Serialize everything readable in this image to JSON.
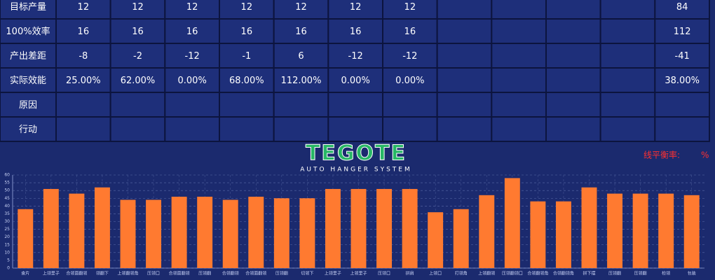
{
  "table": {
    "rows": [
      [
        "目标产量",
        "12",
        "12",
        "12",
        "12",
        "12",
        "12",
        "12",
        null,
        null,
        null,
        null,
        "84"
      ],
      [
        "100%效率",
        "16",
        "16",
        "16",
        "16",
        "16",
        "16",
        "16",
        null,
        null,
        null,
        null,
        "112"
      ],
      [
        "产出差距",
        "-8",
        "-2",
        "-12",
        "-1",
        "6",
        "-12",
        "-12",
        null,
        null,
        null,
        null,
        "-41"
      ],
      [
        "实际效能",
        "25.00%",
        "62.00%",
        "0.00%",
        "68.00%",
        "112.00%",
        "0.00%",
        "0.00%",
        null,
        null,
        null,
        null,
        "38.00%"
      ],
      [
        "原因",
        null,
        null,
        null,
        null,
        null,
        null,
        null,
        null,
        null,
        null,
        null,
        null
      ],
      [
        "行动",
        null,
        null,
        null,
        null,
        null,
        null,
        null,
        null,
        null,
        null,
        null,
        null
      ]
    ]
  },
  "logo": {
    "title": "TEGOTE",
    "subtitle": "AUTO HANGER SYSTEM"
  },
  "balance": {
    "label": "线平衡率:",
    "unit": "%"
  },
  "chart_data": {
    "type": "bar",
    "color": "#ff7a30",
    "grid": true,
    "categories": [
      "查片",
      "上领里子",
      "合领面翻领",
      "领翻下",
      "上领翻领角",
      "压领口",
      "合领面翻领",
      "压领翻",
      "合领翻领",
      "合领面翻领",
      "压领翻",
      "切领下",
      "上领里子",
      "上领里子",
      "压领口",
      "拼肩",
      "上领口",
      "打领角",
      "上领翻领",
      "压领翻领口",
      "合领翻领角",
      "合领翻领角",
      "拼下摆",
      "压领翻",
      "压领翻",
      "检领",
      "包装"
    ],
    "values": [
      38,
      51,
      48,
      52,
      44,
      44,
      46,
      46,
      44,
      46,
      45,
      45,
      51,
      51,
      51,
      51,
      36,
      38,
      47,
      58,
      43,
      43,
      52,
      48,
      48,
      48,
      47
    ],
    "ylim": [
      0,
      60
    ],
    "yticks": [
      0,
      5,
      10,
      15,
      20,
      25,
      30,
      35,
      40,
      45,
      50,
      55,
      60
    ]
  }
}
